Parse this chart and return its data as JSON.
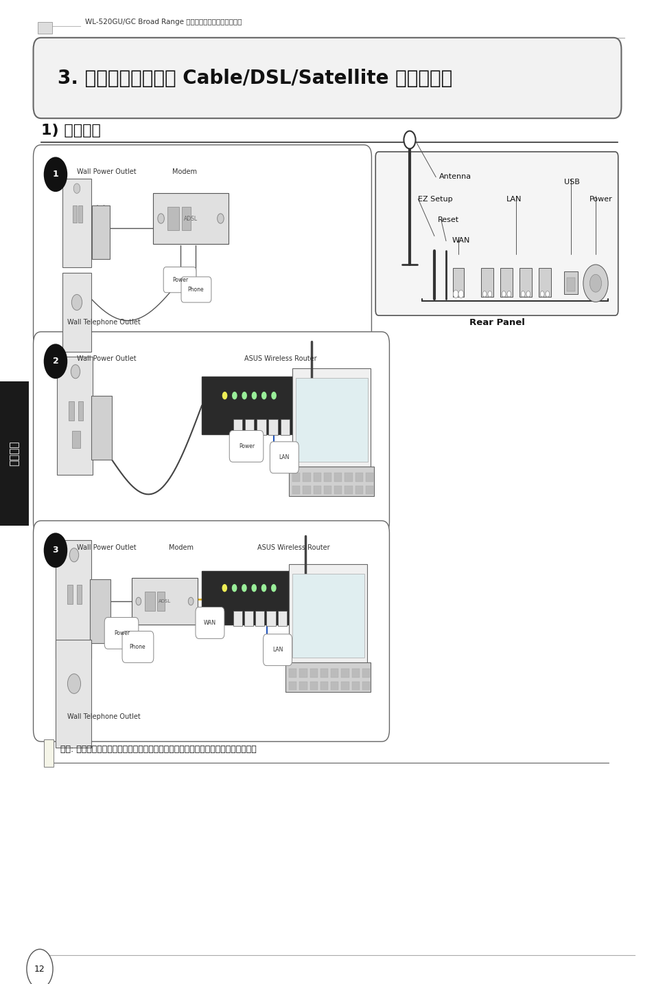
{
  "bg_color": "#ffffff",
  "page_width": 9.54,
  "page_height": 14.32,
  "dpi": 100,
  "header_text": "WL-520GU/GC Broad Range 无线家庭路由器快速使用指南",
  "title_text": "3. 连接无线路由器至 Cable/DSL/Satellite 调制解调器",
  "section_title": "1) 线缆连接",
  "sidebar_text": "简体中文",
  "page_num": "12",
  "note_text": "注意: 仅可使用产品包装中所含的电源适配器，使用其他适配器可能会导致设备损毁。",
  "rear_panel_label": "Rear Panel",
  "label_antenna": "Antenna",
  "label_ezsetup": "EZ Setup",
  "label_reset": "Reset",
  "label_wan": "WAN",
  "label_lan": "LAN",
  "label_usb": "USB",
  "label_power": "Power",
  "box1_label_wall": "Wall Power Outlet",
  "box1_label_modem": "Modem",
  "box1_label_phone": "Wall Telephone Outlet",
  "box2_label_wall": "Wall Power Outlet",
  "box2_label_router": "ASUS Wireless Router",
  "box3_label_wall": "Wall Power Outlet",
  "box3_label_modem": "Modem",
  "box3_label_router": "ASUS Wireless Router",
  "step1": "①",
  "step2": "②",
  "step3": "③",
  "sidebar_bg": "#1a1a1a",
  "sidebar_text_color": "#ffffff",
  "title_bg": "#f2f2f2",
  "title_border": "#666666",
  "box_border": "#666666",
  "text_dark": "#111111",
  "text_mid": "#333333",
  "line_gray": "#aaaaaa",
  "rear_panel_bg": "#f5f5f5"
}
